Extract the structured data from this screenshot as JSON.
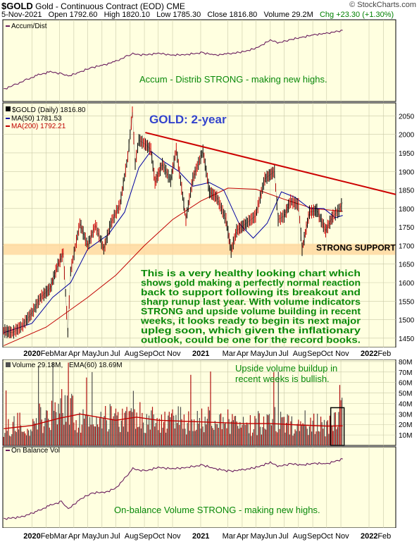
{
  "header": {
    "symbol": "$GOLD",
    "name": "Gold - Continuous Contract (EOD)",
    "exchange": "CME",
    "date": "5-Nov-2021",
    "open": "Open 1792.60",
    "high": "High 1820.10",
    "low": "Low 1785.30",
    "close": "Close 1816.80",
    "volume": "Volume 29.2M",
    "change": "Chg +23.30 (+1.30%)",
    "watermark": "© StockCharts.com",
    "change_color": "#008000"
  },
  "chart_data": [
    {
      "type": "line",
      "panel": "accum-dist",
      "legend": "Accum/Dist",
      "series": [
        {
          "name": "Accum/Dist",
          "color": "#6a1e5e",
          "x": [
            "2019-11-01",
            "2019-11-25",
            "2019-12-20",
            "2020-01-15",
            "2020-02-10",
            "2020-03-05",
            "2020-03-20",
            "2020-04-15",
            "2020-05-10",
            "2020-06-05",
            "2020-07-01",
            "2020-07-25",
            "2020-08-07",
            "2020-09-01",
            "2020-10-01",
            "2020-11-01",
            "2020-12-01",
            "2021-01-05",
            "2021-02-01",
            "2021-03-01",
            "2021-04-01",
            "2021-05-01",
            "2021-06-01",
            "2021-06-20",
            "2021-07-15",
            "2021-08-10",
            "2021-09-05",
            "2021-10-01",
            "2021-11-05"
          ],
          "values": [
            5,
            12,
            20,
            28,
            33,
            30,
            26,
            33,
            40,
            44,
            50,
            58,
            62,
            60,
            63,
            60,
            61,
            64,
            60,
            62,
            65,
            71,
            84,
            80,
            85,
            89,
            93,
            95,
            100
          ]
        }
      ],
      "annotation": "Accum - Distrib STRONG - making new highs."
    },
    {
      "type": "line",
      "panel": "price",
      "title": "GOLD: 2-year",
      "y_ticks": [
        1450,
        1500,
        1550,
        1600,
        1650,
        1700,
        1750,
        1800,
        1850,
        1900,
        1950,
        2000,
        2050
      ],
      "ylim": [
        1425,
        2085
      ],
      "x_ticks": [
        "2020",
        "Feb",
        "Mar",
        "Apr",
        "May",
        "Jun",
        "Jul",
        "Aug",
        "Sep",
        "Oct",
        "Nov",
        "2021",
        "Mar",
        "Apr",
        "May",
        "Jun",
        "Jul",
        "Aug",
        "Sep",
        "Oct",
        "Nov",
        "2022",
        "Feb"
      ],
      "series": [
        {
          "name": "$GOLD (Daily) 1816.80",
          "color": "#000000",
          "x": [
            "2019-11-01",
            "2019-11-20",
            "2019-12-10",
            "2020-01-02",
            "2020-01-20",
            "2020-02-10",
            "2020-02-24",
            "2020-03-09",
            "2020-03-19",
            "2020-03-25",
            "2020-04-14",
            "2020-05-01",
            "2020-05-18",
            "2020-06-05",
            "2020-06-20",
            "2020-07-10",
            "2020-07-27",
            "2020-08-06",
            "2020-08-12",
            "2020-08-20",
            "2020-09-01",
            "2020-09-15",
            "2020-09-24",
            "2020-10-10",
            "2020-10-28",
            "2020-11-09",
            "2020-11-30",
            "2020-12-15",
            "2021-01-06",
            "2021-01-20",
            "2021-02-05",
            "2021-02-25",
            "2021-03-08",
            "2021-03-20",
            "2021-04-10",
            "2021-04-30",
            "2021-05-20",
            "2021-06-10",
            "2021-06-18",
            "2021-07-01",
            "2021-07-15",
            "2021-08-01",
            "2021-08-09",
            "2021-08-25",
            "2021-09-10",
            "2021-09-29",
            "2021-10-15",
            "2021-10-28",
            "2021-11-05"
          ],
          "values": [
            1470,
            1465,
            1482,
            1520,
            1560,
            1585,
            1640,
            1680,
            1465,
            1630,
            1760,
            1700,
            1755,
            1690,
            1760,
            1810,
            1940,
            2060,
            1920,
            1985,
            1975,
            1960,
            1870,
            1920,
            1875,
            1960,
            1770,
            1880,
            1955,
            1845,
            1830,
            1770,
            1685,
            1740,
            1760,
            1780,
            1880,
            1900,
            1770,
            1780,
            1820,
            1810,
            1690,
            1790,
            1795,
            1740,
            1780,
            1795,
            1816.8
          ]
        },
        {
          "name": "MA(50) 1781.53",
          "color": "#0000a0",
          "x": [
            "2019-11-01",
            "2020-01-01",
            "2020-02-15",
            "2020-03-25",
            "2020-05-01",
            "2020-06-15",
            "2020-07-20",
            "2020-08-20",
            "2020-09-15",
            "2020-10-15",
            "2020-11-15",
            "2020-12-15",
            "2021-01-20",
            "2021-02-20",
            "2021-03-25",
            "2021-04-25",
            "2021-05-25",
            "2021-06-25",
            "2021-07-25",
            "2021-08-25",
            "2021-09-25",
            "2021-10-20",
            "2021-11-05"
          ],
          "values": [
            1465,
            1490,
            1560,
            1600,
            1690,
            1730,
            1790,
            1910,
            1955,
            1925,
            1900,
            1860,
            1870,
            1850,
            1760,
            1720,
            1760,
            1845,
            1830,
            1800,
            1800,
            1775,
            1781.5
          ]
        },
        {
          "name": "MA(200) 1792.21",
          "color": "#c00000",
          "x": [
            "2019-11-01",
            "2020-02-01",
            "2020-05-01",
            "2020-07-01",
            "2020-09-01",
            "2020-11-01",
            "2021-01-01",
            "2021-03-01",
            "2021-05-01",
            "2021-07-01",
            "2021-09-01",
            "2021-11-05"
          ],
          "values": [
            1430,
            1480,
            1560,
            1620,
            1700,
            1770,
            1820,
            1855,
            1852,
            1825,
            1800,
            1792.2
          ]
        }
      ],
      "trendline": {
        "from": {
          "x": "2020-09-03",
          "y": 2005
        },
        "to": {
          "x": "2022-02-28",
          "y": 1838
        },
        "color": "#cc0000"
      },
      "support_zone": {
        "from": 1675,
        "to": 1705,
        "color": "#ffd9a0",
        "label": "STRONG SUPPORT"
      },
      "annotation": "This is a very healthy looking chart which shows gold making a perfectly normal reaction back to support following its breakout and sharp runup last year. With volume indicators STRONG and upside volume building in recent weeks, it looks ready to begin its next major upleg soon, which given the inflationary outlook, could be one for the record books.",
      "annotation_lines": [
        "This is a very healthy looking chart which",
        "shows gold making a perfectly normal reaction",
        "back to support following its breakout and",
        "sharp runup last year. With volume indicators",
        "STRONG and upside volume building in recent",
        "weeks, it looks ready to begin its next major",
        "upleg soon, which given the inflationary",
        "outlook, could be one for the record books."
      ]
    },
    {
      "type": "bar",
      "panel": "volume",
      "legend_volume": "Volume 29.18M,",
      "legend_ema": "EMA(60) 18.69M",
      "y_ticks": [
        "10M",
        "20M",
        "30M",
        "40M",
        "50M",
        "60M",
        "70M",
        "80M"
      ],
      "y_tick_values": [
        10,
        20,
        30,
        40,
        50,
        60,
        70,
        80
      ],
      "ylim": [
        0,
        82
      ],
      "unit": "M",
      "volume_months": [
        "2019-11",
        "2019-12",
        "2020-01",
        "2020-02",
        "2020-03",
        "2020-04",
        "2020-05",
        "2020-06",
        "2020-07",
        "2020-08",
        "2020-09",
        "2020-10",
        "2020-11",
        "2020-12",
        "2021-01",
        "2021-02",
        "2021-03",
        "2021-04",
        "2021-05",
        "2021-06",
        "2021-07",
        "2021-08",
        "2021-09",
        "2021-10",
        "2021-11"
      ],
      "volume_avg": [
        18,
        20,
        26,
        30,
        34,
        22,
        24,
        25,
        28,
        33,
        25,
        22,
        24,
        23,
        24,
        24,
        22,
        20,
        21,
        24,
        20,
        22,
        19,
        20,
        29
      ],
      "ema": {
        "name": "EMA(60) 18.69M",
        "color": "#c00000",
        "x": [
          "2019-11-01",
          "2020-01-01",
          "2020-03-01",
          "2020-04-15",
          "2020-07-01",
          "2020-08-15",
          "2020-10-01",
          "2020-12-01",
          "2021-02-01",
          "2021-04-01",
          "2021-06-01",
          "2021-08-01",
          "2021-10-01",
          "2021-11-05"
        ],
        "values": [
          16,
          19,
          26,
          30,
          24,
          27,
          24,
          23,
          22,
          21,
          21,
          19.5,
          18.5,
          18.7
        ]
      },
      "highlight_box": {
        "from": "2021-10-10",
        "to": "2021-11-08",
        "top": 36
      },
      "annotation_lines": [
        "Upside volume buildup in",
        "recent weeks is bullish."
      ]
    },
    {
      "type": "line",
      "panel": "on-balance-volume",
      "legend": "On Balance Vol",
      "x_ticks": [
        "2020",
        "Feb",
        "Mar",
        "Apr",
        "May",
        "Jun",
        "Jul",
        "Aug",
        "Sep",
        "Oct",
        "Nov",
        "2021",
        "Mar",
        "Apr",
        "May",
        "Jun",
        "Jul",
        "Aug",
        "Sep",
        "Oct",
        "Nov",
        "2022",
        "Feb"
      ],
      "series": [
        {
          "name": "On Balance Vol",
          "color": "#6a1e5e",
          "x": [
            "2019-11-01",
            "2019-12-10",
            "2020-01-15",
            "2020-02-10",
            "2020-03-05",
            "2020-03-20",
            "2020-04-15",
            "2020-05-10",
            "2020-06-10",
            "2020-07-01",
            "2020-07-20",
            "2020-08-07",
            "2020-09-01",
            "2020-10-01",
            "2020-11-01",
            "2020-12-01",
            "2021-01-05",
            "2021-02-01",
            "2021-03-05",
            "2021-04-01",
            "2021-05-01",
            "2021-06-01",
            "2021-06-20",
            "2021-07-15",
            "2021-08-10",
            "2021-09-05",
            "2021-10-01",
            "2021-11-05"
          ],
          "values": [
            2,
            5,
            15,
            24,
            30,
            18,
            34,
            44,
            46,
            52,
            68,
            84,
            80,
            86,
            84,
            86,
            90,
            84,
            80,
            82,
            86,
            94,
            88,
            92,
            90,
            93,
            92,
            100
          ]
        }
      ],
      "annotation": "On-balance Volume STRONG - making new highs."
    }
  ]
}
